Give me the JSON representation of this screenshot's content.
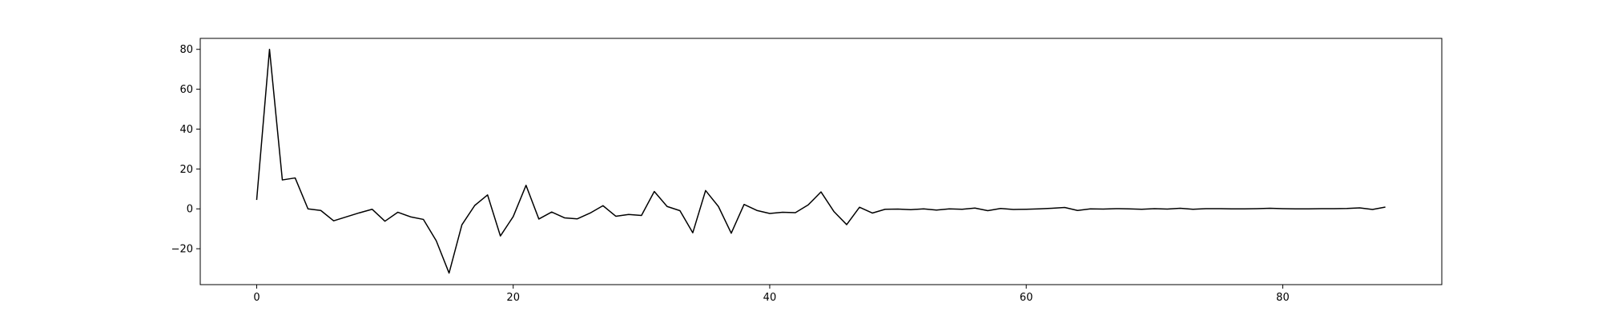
{
  "chart_data": {
    "type": "line",
    "title": "",
    "xlabel": "",
    "ylabel": "",
    "xlim": [
      -4.4,
      92.4
    ],
    "ylim": [
      -38,
      85.5
    ],
    "grid": false,
    "legend": "none",
    "x_ticks": [
      0,
      20,
      40,
      60,
      80
    ],
    "x_tick_labels": [
      "0",
      "20",
      "40",
      "60",
      "80"
    ],
    "y_ticks": [
      -20,
      0,
      20,
      40,
      60,
      80
    ],
    "y_tick_labels": [
      "−20",
      "0",
      "20",
      "40",
      "60",
      "80"
    ],
    "series": [
      {
        "color": "#000000",
        "x": [
          0,
          1,
          2,
          3,
          4,
          5,
          6,
          7,
          8,
          9,
          10,
          11,
          12,
          13,
          14,
          15,
          16,
          17,
          18,
          19,
          20,
          21,
          22,
          23,
          24,
          25,
          26,
          27,
          28,
          29,
          30,
          31,
          32,
          33,
          34,
          35,
          36,
          37,
          38,
          39,
          40,
          41,
          42,
          43,
          44,
          45,
          46,
          47,
          48,
          49,
          50,
          51,
          52,
          53,
          54,
          55,
          56,
          57,
          58,
          59,
          60,
          61,
          62,
          63,
          64,
          65,
          66,
          67,
          68,
          69,
          70,
          71,
          72,
          73,
          74,
          75,
          76,
          77,
          78,
          79,
          80,
          81,
          82,
          83,
          84,
          85,
          86,
          87,
          88
        ],
        "y": [
          4.5,
          80,
          14.5,
          15.5,
          0,
          -0.8,
          -6,
          -4,
          -2,
          -0.2,
          -6.2,
          -1.7,
          -4,
          -5.3,
          -16,
          -32.2,
          -8,
          1.7,
          7,
          -13.6,
          -3.9,
          11.8,
          -5.1,
          -1.6,
          -4.5,
          -5,
          -2.1,
          1.6,
          -3.7,
          -2.8,
          -3.3,
          8.7,
          1.2,
          -0.9,
          -12,
          9.2,
          1.2,
          -12.2,
          2.2,
          -0.8,
          -2.3,
          -1.7,
          -1.9,
          2,
          8.5,
          -1.3,
          -7.9,
          0.8,
          -2.1,
          -0.2,
          -0.1,
          -0.4,
          0,
          -0.6,
          0,
          -0.2,
          0.4,
          -0.9,
          0.2,
          -0.3,
          -0.2,
          0,
          0.3,
          0.7,
          -0.8,
          0,
          -0.1,
          0.1,
          0,
          -0.2,
          0.1,
          -0.1,
          0.3,
          -0.2,
          0.1,
          0.1,
          0,
          0,
          0.1,
          0.3,
          0.1,
          0,
          0,
          0.1,
          0.1,
          0.2,
          0.5,
          -0.3,
          0.9
        ]
      }
    ]
  }
}
